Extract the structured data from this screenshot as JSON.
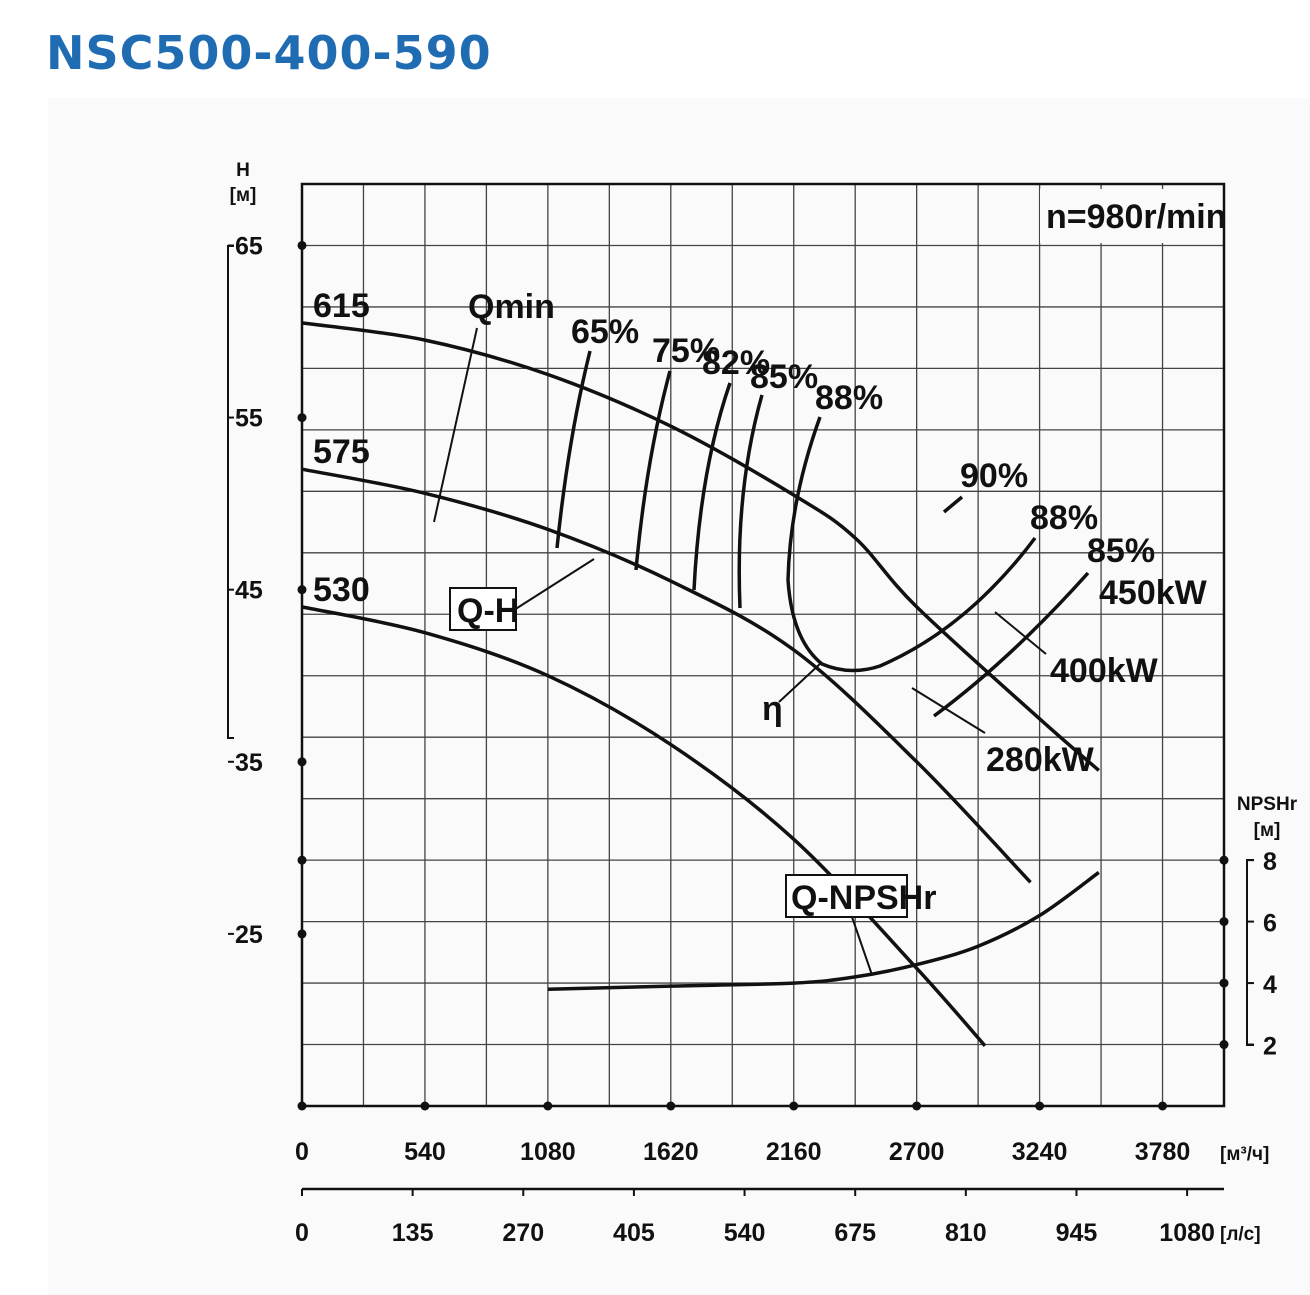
{
  "title": "NSC500-400-590",
  "chart_data": {
    "type": "line",
    "speed_label": "n=980r/min",
    "head_axis": {
      "label": "H",
      "unit": "[м]",
      "ticks": [
        "65",
        "55",
        "45",
        "35",
        "25"
      ],
      "range": [
        15,
        65
      ]
    },
    "npsh_axis": {
      "label": "NPSHr",
      "unit": "[м]",
      "ticks": [
        "8",
        "6",
        "4",
        "2"
      ],
      "range": [
        2,
        8
      ]
    },
    "flow_axis_m3h": {
      "unit": "[м³/ч]",
      "ticks": [
        "0",
        "540",
        "1080",
        "1620",
        "2160",
        "2700",
        "3240",
        "3780"
      ],
      "range": [
        0,
        4050
      ]
    },
    "flow_axis_ls": {
      "unit": "[л/с]",
      "ticks": [
        "0",
        "135",
        "270",
        "405",
        "540",
        "675",
        "810",
        "945",
        "1080"
      ],
      "range": [
        0,
        1125
      ]
    },
    "qh_curves": [
      {
        "impeller": "615",
        "q_m3h": [
          0,
          540,
          1080,
          1620,
          2160,
          2430,
          2700,
          3240,
          3500
        ],
        "h_m": [
          60.5,
          59.5,
          57.5,
          54.5,
          50.5,
          48.0,
          44.0,
          37.5,
          34.5
        ]
      },
      {
        "impeller": "575",
        "q_m3h": [
          0,
          540,
          1080,
          1620,
          2160,
          2700,
          3200
        ],
        "h_m": [
          52.0,
          50.6,
          48.5,
          45.5,
          41.5,
          35.0,
          28.0
        ]
      },
      {
        "impeller": "530",
        "q_m3h": [
          0,
          540,
          1080,
          1620,
          2160,
          2700,
          3000
        ],
        "h_m": [
          44.0,
          42.5,
          40.0,
          36.0,
          30.5,
          23.0,
          18.5
        ]
      }
    ],
    "labels": {
      "qh": "Q-H",
      "qmin": "Qmin",
      "efficiency_symbol": "η",
      "npsh": "Q-NPSHr",
      "efficiency_top": [
        "65%",
        "75%",
        "82%",
        "85%",
        "88%",
        "90%"
      ],
      "efficiency_right": [
        "88%",
        "85%"
      ],
      "power": [
        "450kW",
        "400kW",
        "280kW"
      ]
    },
    "npsh_curve": {
      "q_m3h": [
        1080,
        1620,
        2160,
        2430,
        2700,
        2970,
        3240,
        3500
      ],
      "npshr_m": [
        3.8,
        3.9,
        4.0,
        4.2,
        4.6,
        5.2,
        6.2,
        7.6
      ]
    }
  }
}
